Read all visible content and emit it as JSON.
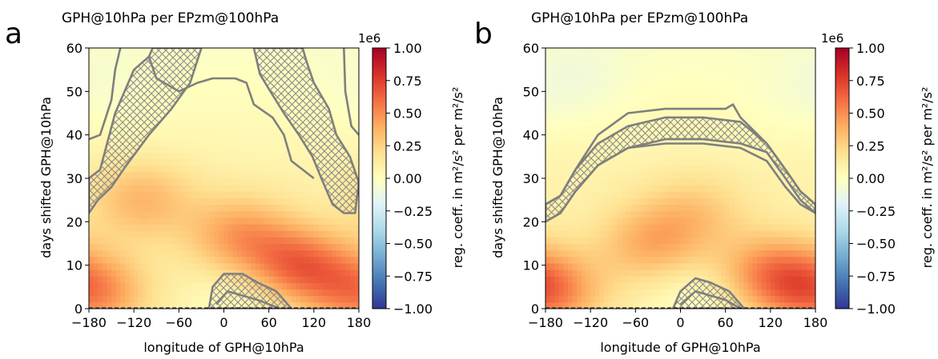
{
  "chart_data": [
    {
      "panel_label": "a",
      "type": "heatmap",
      "title": "GPH@10hPa per EPzm@100hPa",
      "xlabel": "longitude of GPH@10hPa",
      "ylabel": "days shifted GPH@10hPa",
      "xlim": [
        -180,
        180
      ],
      "ylim": [
        0,
        60
      ],
      "x_ticks": [
        -180,
        -120,
        -60,
        0,
        60,
        120,
        180
      ],
      "x_tick_labels": [
        "−180",
        "−120",
        "−60",
        "0",
        "60",
        "120",
        "180"
      ],
      "y_ticks": [
        0,
        10,
        20,
        30,
        40,
        50,
        60
      ],
      "y_tick_labels": [
        "0",
        "10",
        "20",
        "30",
        "40",
        "50",
        "60"
      ],
      "colorbar": {
        "label": "reg. coeff. in m²/s² per m²/s²",
        "multiplier": "1e6",
        "range": [
          -1.0,
          1.0
        ],
        "ticks": [
          1.0,
          0.75,
          0.5,
          0.25,
          0.0,
          -0.25,
          -0.5,
          -0.75,
          -1.0
        ],
        "tick_labels": [
          "1.00",
          "0.75",
          "0.50",
          "0.25",
          "0.00",
          "−0.25",
          "−0.50",
          "−0.75",
          "−1.00"
        ],
        "colormap": "RdYlBu_r"
      },
      "field_centers": [
        {
          "lon": -175,
          "day": 4,
          "value": 0.45
        },
        {
          "lon": 100,
          "day": 10,
          "value": 0.5
        },
        {
          "lon": 20,
          "day": 17,
          "value": 0.35
        },
        {
          "lon": -110,
          "day": 25,
          "value": 0.28
        },
        {
          "lon": 20,
          "day": 2,
          "value": -0.1
        },
        {
          "lon": -170,
          "day": 50,
          "value": -0.05
        }
      ],
      "significance_contours": [
        {
          "kind": "hatched",
          "points": [
            [
              -180,
              30
            ],
            [
              -165,
              32
            ],
            [
              -145,
              45
            ],
            [
              -120,
              55
            ],
            [
              -100,
              58
            ],
            [
              -95,
              60
            ],
            [
              -30,
              60
            ],
            [
              -45,
              52
            ],
            [
              -70,
              46
            ],
            [
              -100,
              40
            ],
            [
              -130,
              33
            ],
            [
              -150,
              28
            ],
            [
              -168,
              25
            ],
            [
              -180,
              22
            ]
          ]
        },
        {
          "kind": "hatched",
          "points": [
            [
              180,
              29
            ],
            [
              168,
              35
            ],
            [
              150,
              40
            ],
            [
              140,
              46
            ],
            [
              120,
              52
            ],
            [
              110,
              57
            ],
            [
              105,
              60
            ],
            [
              40,
              60
            ],
            [
              48,
              54
            ],
            [
              62,
              50
            ],
            [
              80,
              45
            ],
            [
              100,
              40
            ],
            [
              118,
              35
            ],
            [
              130,
              30
            ],
            [
              145,
              24
            ],
            [
              160,
              22
            ],
            [
              175,
              22
            ]
          ]
        },
        {
          "kind": "hatched",
          "points": [
            [
              -20,
              0
            ],
            [
              -15,
              5
            ],
            [
              0,
              8
            ],
            [
              25,
              8
            ],
            [
              45,
              6
            ],
            [
              70,
              4
            ],
            [
              90,
              0
            ]
          ]
        },
        {
          "kind": "line",
          "points": [
            [
              -180,
              39
            ],
            [
              -165,
              40
            ],
            [
              -150,
              48
            ],
            [
              -145,
              55
            ],
            [
              -138,
              60
            ]
          ]
        },
        {
          "kind": "line",
          "points": [
            [
              180,
              40
            ],
            [
              170,
              42
            ],
            [
              162,
              50
            ],
            [
              160,
              60
            ]
          ]
        },
        {
          "kind": "line",
          "points": [
            [
              -100,
              58
            ],
            [
              -90,
              53
            ],
            [
              -60,
              50
            ],
            [
              -35,
              52
            ],
            [
              -15,
              53
            ],
            [
              15,
              53
            ],
            [
              30,
              52
            ],
            [
              40,
              47
            ],
            [
              65,
              44
            ],
            [
              80,
              40
            ],
            [
              90,
              34
            ],
            [
              105,
              32
            ],
            [
              120,
              30
            ]
          ]
        },
        {
          "kind": "line",
          "points": [
            [
              -10,
              1
            ],
            [
              5,
              4
            ],
            [
              25,
              3
            ],
            [
              45,
              2
            ],
            [
              75,
              0
            ]
          ]
        }
      ]
    },
    {
      "panel_label": "b",
      "type": "heatmap",
      "title": "GPH@10hPa per EPzm@100hPa",
      "xlabel": "longitude of GPH@10hPa",
      "ylabel": "days shifted GPH@10hPa",
      "xlim": [
        -180,
        180
      ],
      "ylim": [
        0,
        60
      ],
      "x_ticks": [
        -180,
        -120,
        -60,
        0,
        60,
        120,
        180
      ],
      "x_tick_labels": [
        "−180",
        "−120",
        "−60",
        "0",
        "60",
        "120",
        "180"
      ],
      "y_ticks": [
        0,
        10,
        20,
        30,
        40,
        50,
        60
      ],
      "y_tick_labels": [
        "0",
        "10",
        "20",
        "30",
        "40",
        "50",
        "60"
      ],
      "colorbar": {
        "label": "reg. coeff. in m²/s² per m²/s²",
        "multiplier": "1e6",
        "range": [
          -1.0,
          1.0
        ],
        "ticks": [
          1.0,
          0.75,
          0.5,
          0.25,
          0.0,
          -0.25,
          -0.5,
          -0.75,
          -1.0
        ],
        "tick_labels": [
          "1.00",
          "0.75",
          "0.50",
          "0.25",
          "0.00",
          "−0.25",
          "−0.50",
          "−0.75",
          "−1.00"
        ],
        "colormap": "RdYlBu_r"
      },
      "field_centers": [
        {
          "lon": -175,
          "day": 4,
          "value": 0.45
        },
        {
          "lon": 120,
          "day": 8,
          "value": 0.42
        },
        {
          "lon": -40,
          "day": 15,
          "value": 0.3
        },
        {
          "lon": 20,
          "day": 22,
          "value": 0.2
        },
        {
          "lon": 25,
          "day": 2,
          "value": -0.12
        },
        {
          "lon": -140,
          "day": 52,
          "value": -0.08
        },
        {
          "lon": 150,
          "day": 48,
          "value": -0.04
        }
      ],
      "significance_contours": [
        {
          "kind": "hatched",
          "points": [
            [
              -180,
              24
            ],
            [
              -160,
              26
            ],
            [
              -140,
              32
            ],
            [
              -110,
              38
            ],
            [
              -70,
              42
            ],
            [
              -20,
              44
            ],
            [
              30,
              44
            ],
            [
              80,
              43
            ],
            [
              115,
              38
            ],
            [
              140,
              32
            ],
            [
              160,
              27
            ],
            [
              180,
              24
            ],
            [
              180,
              22
            ],
            [
              160,
              25
            ],
            [
              140,
              30
            ],
            [
              115,
              36
            ],
            [
              80,
              38
            ],
            [
              30,
              39
            ],
            [
              -20,
              39
            ],
            [
              -70,
              37
            ],
            [
              -110,
              33
            ],
            [
              -140,
              27
            ],
            [
              -160,
              22
            ],
            [
              -180,
              20
            ]
          ]
        },
        {
          "kind": "hatched",
          "points": [
            [
              -10,
              0
            ],
            [
              0,
              4
            ],
            [
              20,
              7
            ],
            [
              40,
              6
            ],
            [
              65,
              4
            ],
            [
              85,
              0
            ]
          ]
        },
        {
          "kind": "line",
          "points": [
            [
              -180,
              24
            ],
            [
              -160,
              26
            ],
            [
              -140,
              32
            ],
            [
              -110,
              40
            ],
            [
              -70,
              45
            ],
            [
              -20,
              46
            ],
            [
              30,
              46
            ],
            [
              60,
              46
            ],
            [
              70,
              47
            ],
            [
              80,
              44
            ],
            [
              115,
              38
            ],
            [
              140,
              32
            ],
            [
              160,
              27
            ],
            [
              180,
              24
            ]
          ]
        },
        {
          "kind": "line",
          "points": [
            [
              -180,
              20
            ],
            [
              -160,
              22
            ],
            [
              -140,
              27
            ],
            [
              -110,
              33
            ],
            [
              -70,
              37
            ],
            [
              -20,
              38
            ],
            [
              30,
              38
            ],
            [
              80,
              37
            ],
            [
              115,
              34
            ],
            [
              140,
              28
            ],
            [
              160,
              24
            ],
            [
              180,
              22
            ]
          ]
        },
        {
          "kind": "line",
          "points": [
            [
              0,
              1
            ],
            [
              20,
              4
            ],
            [
              40,
              3
            ],
            [
              60,
              2
            ],
            [
              80,
              0
            ]
          ]
        }
      ]
    }
  ]
}
